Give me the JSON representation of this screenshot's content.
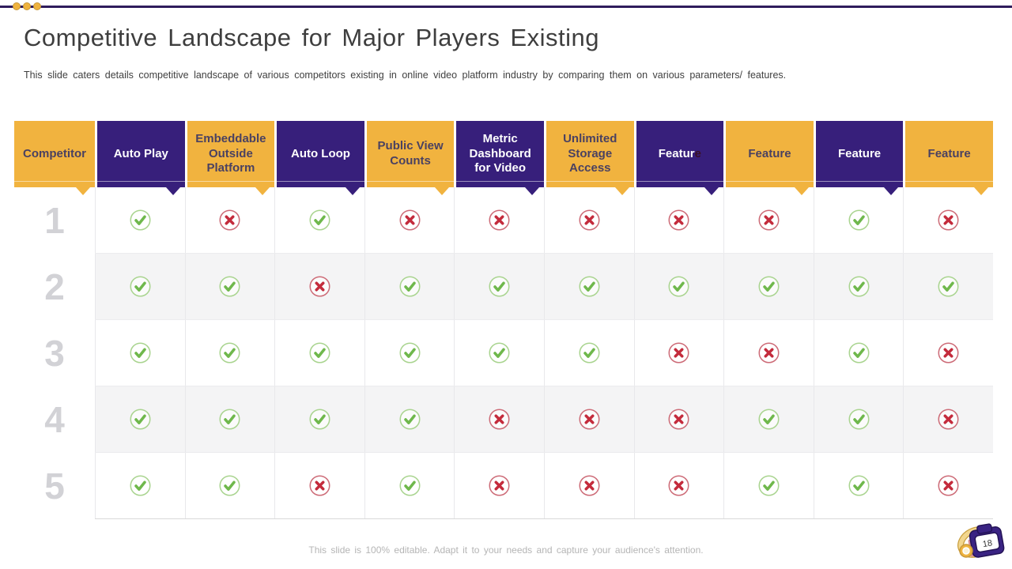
{
  "slide": {
    "title": "Competitive Landscape for Major Players Existing",
    "subtitle": "This slide caters details competitive landscape of various  competitors existing in online video platform industry by comparing them on various  parameters/ features.",
    "footer": "This slide is 100% editable. Adapt it to your needs and capture your audience's attention.",
    "page_number": "18"
  },
  "colors": {
    "accent_purple": "#371F7B",
    "accent_yellow": "#F1B33F",
    "topbar_line": "#2F1C5C",
    "check_green": "#6FB84C",
    "check_circle": "#A9D48F",
    "cross_red": "#C42B3C",
    "cross_circle": "#CD6B77"
  },
  "table": {
    "header": [
      {
        "label": "Competitor",
        "scheme": "yellow"
      },
      {
        "label": "Auto Play",
        "scheme": "purple"
      },
      {
        "label": "Embeddable Outside Platform",
        "scheme": "yellow"
      },
      {
        "label": "Auto Loop",
        "scheme": "purple"
      },
      {
        "label": "Public View Counts",
        "scheme": "yellow"
      },
      {
        "label": "Metric Dashboard for Video",
        "scheme": "purple"
      },
      {
        "label": "Unlimited Storage Access",
        "scheme": "yellow"
      },
      {
        "label": "Feature",
        "scheme": "purple",
        "last_letter_obscured": true
      },
      {
        "label": "Feature",
        "scheme": "yellow"
      },
      {
        "label": "Feature",
        "scheme": "purple"
      },
      {
        "label": "Feature",
        "scheme": "yellow"
      }
    ],
    "rows": [
      {
        "competitor": "1",
        "values": [
          "yes",
          "no",
          "yes",
          "no",
          "no",
          "no",
          "no",
          "no",
          "yes",
          "no"
        ]
      },
      {
        "competitor": "2",
        "values": [
          "yes",
          "yes",
          "no",
          "yes",
          "yes",
          "yes",
          "yes",
          "yes",
          "yes",
          "yes"
        ]
      },
      {
        "competitor": "3",
        "values": [
          "yes",
          "yes",
          "yes",
          "yes",
          "yes",
          "yes",
          "no",
          "no",
          "yes",
          "no"
        ]
      },
      {
        "competitor": "4",
        "values": [
          "yes",
          "yes",
          "yes",
          "yes",
          "no",
          "no",
          "no",
          "yes",
          "yes",
          "no"
        ]
      },
      {
        "competitor": "5",
        "values": [
          "yes",
          "yes",
          "no",
          "yes",
          "no",
          "no",
          "no",
          "yes",
          "yes",
          "no"
        ]
      }
    ],
    "icons": {
      "yes": "check-circle-icon",
      "no": "cross-circle-icon"
    }
  }
}
